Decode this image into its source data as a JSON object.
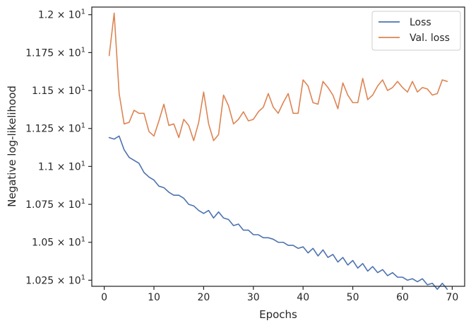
{
  "chart_data": {
    "type": "line",
    "xlabel": "Epochs",
    "ylabel": "Negative log-likelihood",
    "xlim": [
      -2.5,
      72.5
    ],
    "ylim": [
      10.21,
      12.05
    ],
    "grid": false,
    "legend_position": "top-right",
    "x_ticks": [
      0,
      10,
      20,
      30,
      40,
      50,
      60,
      70
    ],
    "x_tick_labels": [
      "0",
      "10",
      "20",
      "30",
      "40",
      "50",
      "60",
      "70"
    ],
    "y_ticks": [
      10.25,
      10.5,
      10.75,
      11.0,
      11.25,
      11.5,
      11.75,
      12.0
    ],
    "y_tick_labels": [
      {
        "mantissa": "1.025",
        "exp": "1"
      },
      {
        "mantissa": "1.05",
        "exp": "1"
      },
      {
        "mantissa": "1.075",
        "exp": "1"
      },
      {
        "mantissa": "1.1",
        "exp": "1"
      },
      {
        "mantissa": "1.125",
        "exp": "1"
      },
      {
        "mantissa": "1.15",
        "exp": "1"
      },
      {
        "mantissa": "1.175",
        "exp": "1"
      },
      {
        "mantissa": "1.2",
        "exp": "1"
      }
    ],
    "series": [
      {
        "name": "Loss",
        "color": "#4c72b0",
        "x": [
          1,
          2,
          3,
          4,
          5,
          6,
          7,
          8,
          9,
          10,
          11,
          12,
          13,
          14,
          15,
          16,
          17,
          18,
          19,
          20,
          21,
          22,
          23,
          24,
          25,
          26,
          27,
          28,
          29,
          30,
          31,
          32,
          33,
          34,
          35,
          36,
          37,
          38,
          39,
          40,
          41,
          42,
          43,
          44,
          45,
          46,
          47,
          48,
          49,
          50,
          51,
          52,
          53,
          54,
          55,
          56,
          57,
          58,
          59,
          60,
          61,
          62,
          63,
          64,
          65,
          66,
          67,
          68,
          69
        ],
        "values": [
          11.19,
          11.18,
          11.2,
          11.11,
          11.06,
          11.04,
          11.02,
          10.96,
          10.93,
          10.91,
          10.87,
          10.86,
          10.83,
          10.81,
          10.81,
          10.79,
          10.75,
          10.74,
          10.71,
          10.69,
          10.71,
          10.66,
          10.7,
          10.66,
          10.65,
          10.61,
          10.62,
          10.58,
          10.58,
          10.55,
          10.55,
          10.53,
          10.53,
          10.52,
          10.5,
          10.5,
          10.48,
          10.48,
          10.46,
          10.47,
          10.43,
          10.46,
          10.41,
          10.45,
          10.4,
          10.42,
          10.37,
          10.4,
          10.35,
          10.38,
          10.33,
          10.36,
          10.31,
          10.34,
          10.3,
          10.32,
          10.28,
          10.3,
          10.27,
          10.27,
          10.25,
          10.26,
          10.24,
          10.26,
          10.22,
          10.23,
          10.19,
          10.23,
          10.19
        ]
      },
      {
        "name": "Val. loss",
        "color": "#dd8452",
        "x": [
          1,
          2,
          3,
          4,
          5,
          6,
          7,
          8,
          9,
          10,
          11,
          12,
          13,
          14,
          15,
          16,
          17,
          18,
          19,
          20,
          21,
          22,
          23,
          24,
          25,
          26,
          27,
          28,
          29,
          30,
          31,
          32,
          33,
          34,
          35,
          36,
          37,
          38,
          39,
          40,
          41,
          42,
          43,
          44,
          45,
          46,
          47,
          48,
          49,
          50,
          51,
          52,
          53,
          54,
          55,
          56,
          57,
          58,
          59,
          60,
          61,
          62,
          63,
          64,
          65,
          66,
          67,
          68,
          69
        ],
        "values": [
          11.73,
          12.01,
          11.48,
          11.28,
          11.29,
          11.37,
          11.35,
          11.35,
          11.23,
          11.2,
          11.3,
          11.41,
          11.27,
          11.28,
          11.19,
          11.31,
          11.27,
          11.17,
          11.29,
          11.49,
          11.28,
          11.17,
          11.21,
          11.47,
          11.4,
          11.28,
          11.31,
          11.36,
          11.3,
          11.31,
          11.36,
          11.39,
          11.48,
          11.39,
          11.35,
          11.42,
          11.48,
          11.35,
          11.35,
          11.57,
          11.53,
          11.42,
          11.41,
          11.56,
          11.52,
          11.47,
          11.38,
          11.55,
          11.47,
          11.42,
          11.42,
          11.58,
          11.44,
          11.47,
          11.53,
          11.57,
          11.5,
          11.52,
          11.56,
          11.52,
          11.49,
          11.56,
          11.49,
          11.52,
          11.51,
          11.47,
          11.48,
          11.57,
          11.56
        ]
      }
    ]
  }
}
